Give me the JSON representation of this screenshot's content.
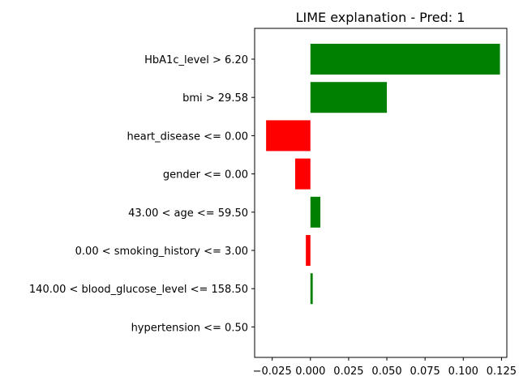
{
  "chart_data": {
    "type": "bar",
    "orientation": "horizontal",
    "title": "LIME explanation - Pred: 1",
    "xlabel": "",
    "ylabel": "",
    "categories": [
      "HbA1c_level > 6.20",
      "bmi > 29.58",
      "heart_disease <= 0.00",
      "gender <= 0.00",
      "43.00 < age <= 59.50",
      "0.00 < smoking_history <= 3.00",
      "140.00 < blood_glucose_level <= 158.50",
      "hypertension <= 0.50"
    ],
    "values": [
      0.124,
      0.05,
      -0.029,
      -0.01,
      0.0065,
      -0.003,
      0.0015,
      0.0
    ],
    "xlim": [
      -0.0365,
      0.1285
    ],
    "xticks": [
      -0.025,
      0.0,
      0.025,
      0.05,
      0.075,
      0.1,
      0.125
    ],
    "xtick_labels": [
      "−0.025",
      "0.000",
      "0.025",
      "0.050",
      "0.075",
      "0.100",
      "0.125"
    ],
    "colors": {
      "positive": "#008000",
      "negative": "#ff0000"
    },
    "grid": false,
    "legend": "none"
  }
}
